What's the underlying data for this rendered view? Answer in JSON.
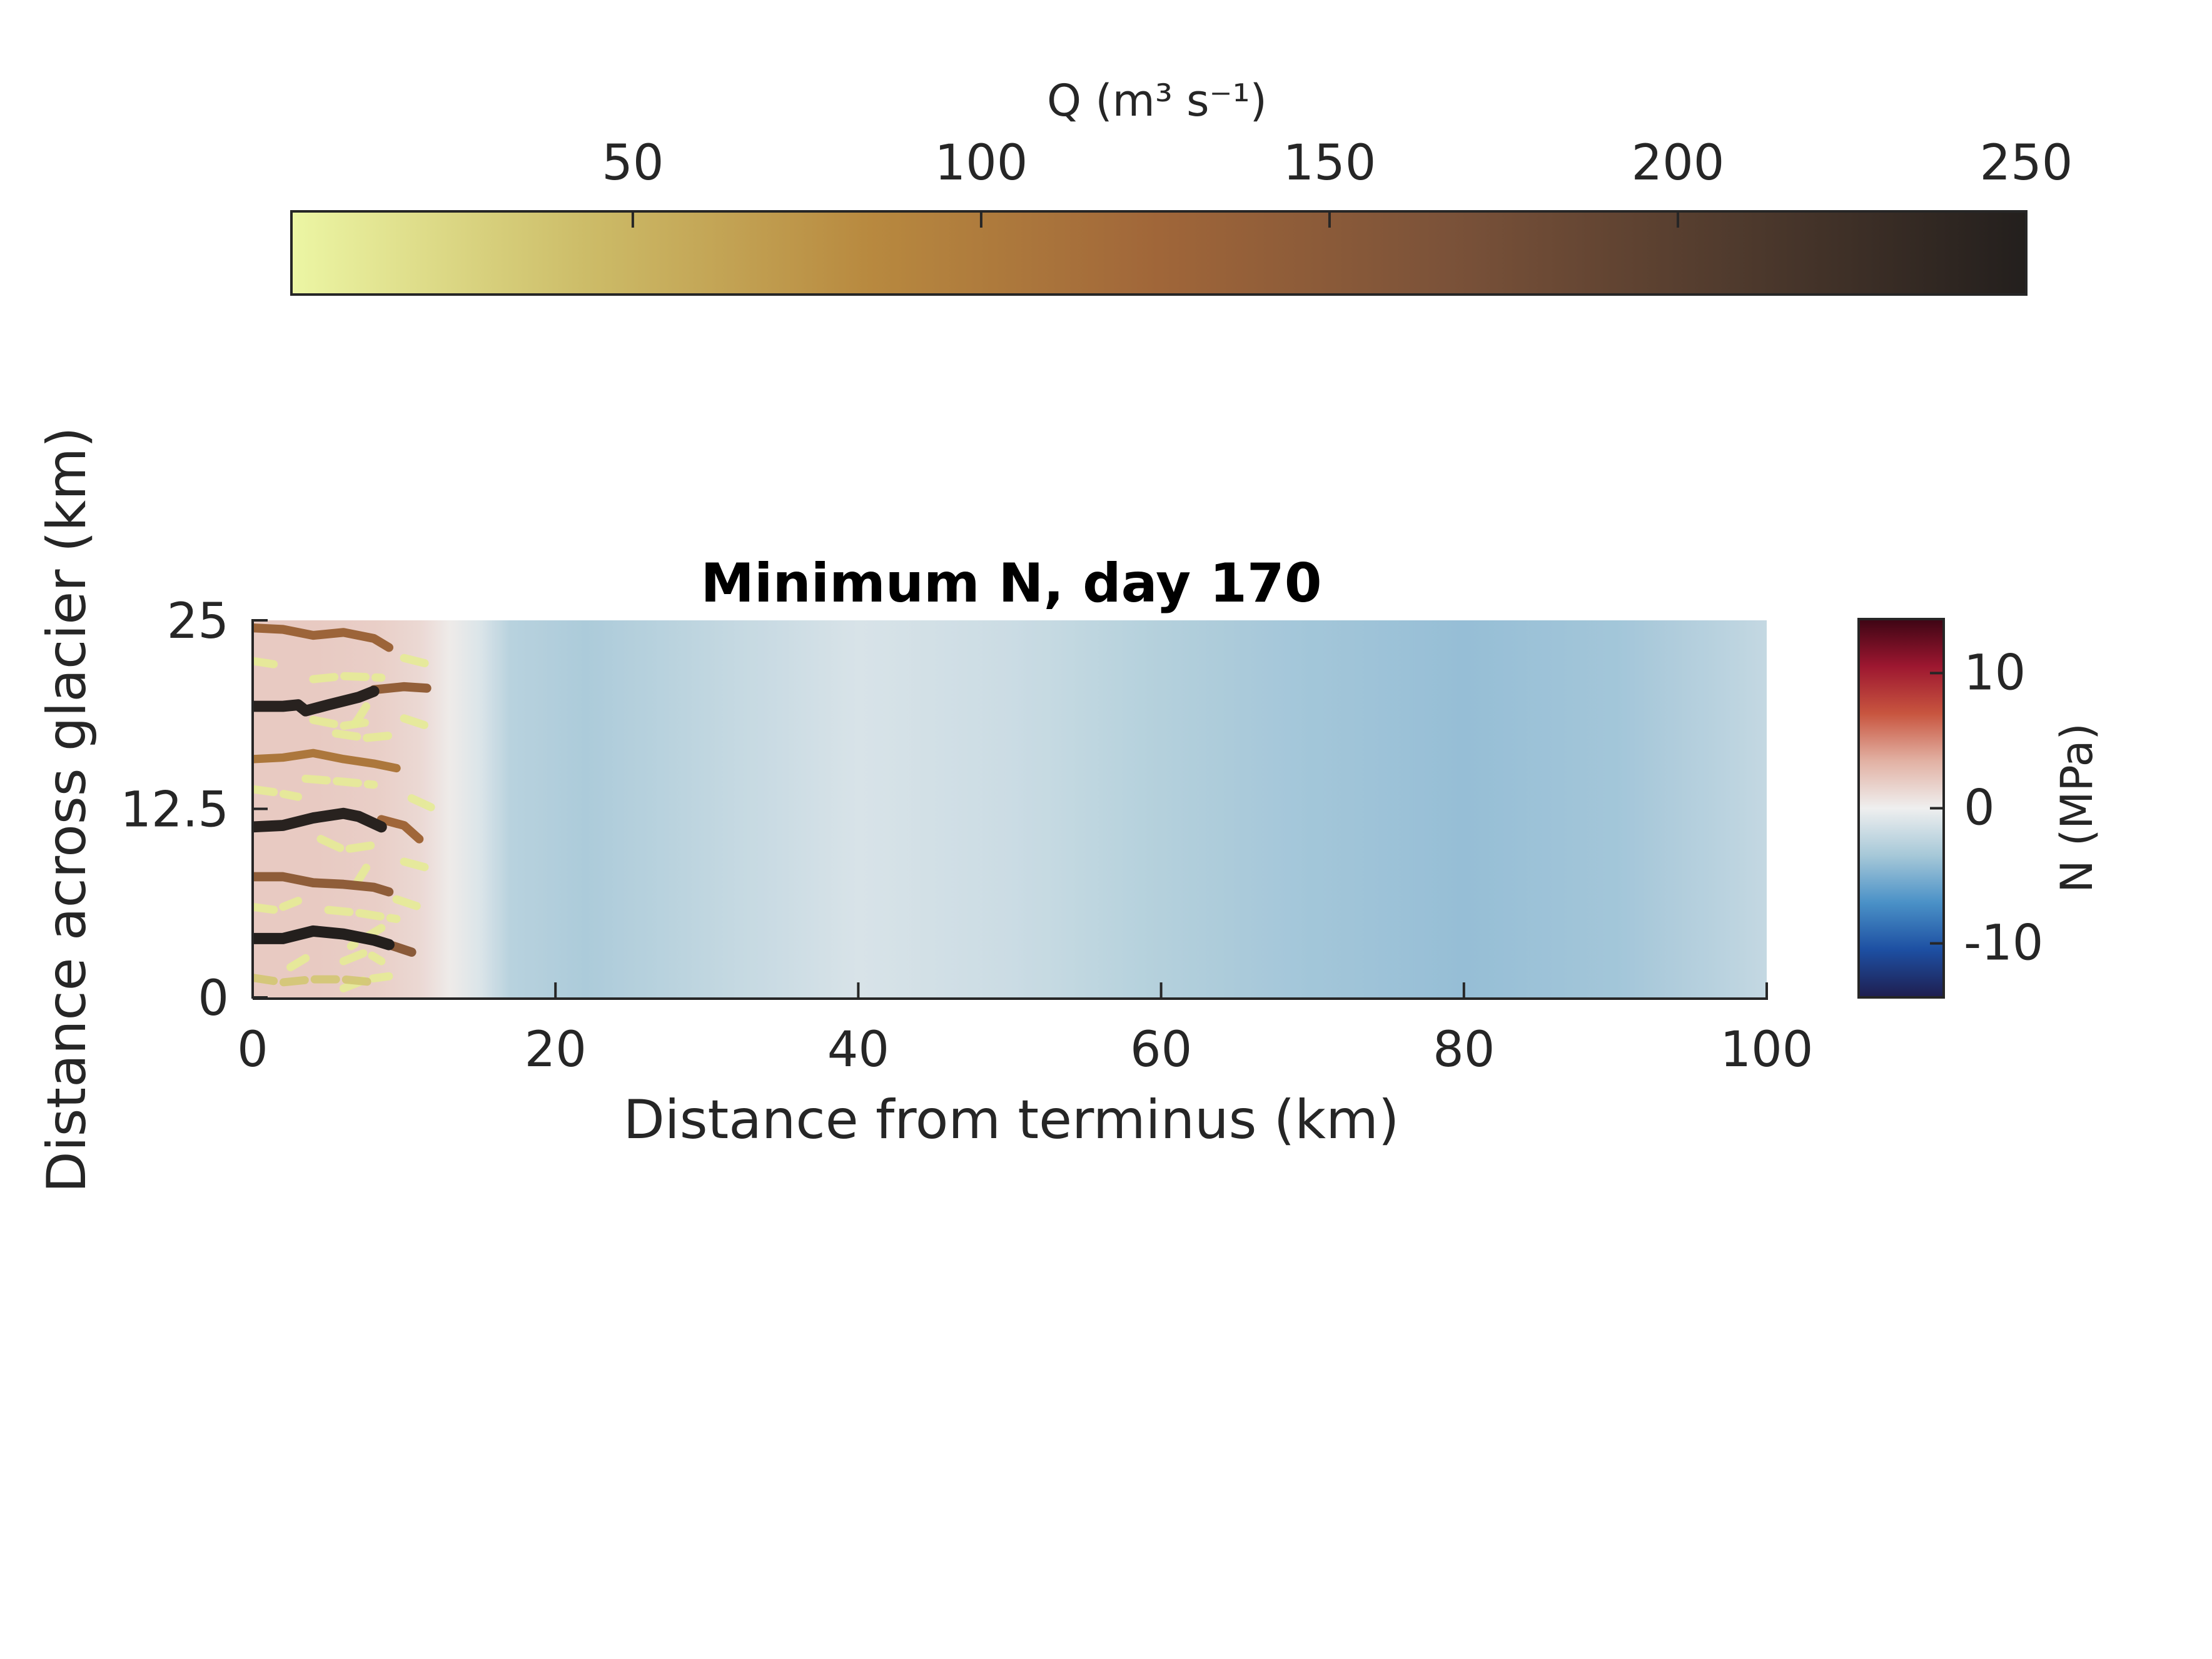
{
  "chart_data": {
    "type": "heatmap",
    "title": "Minimum N, day 170",
    "xlabel": "Distance from terminus (km)",
    "ylabel": "Distance across glacier (km)",
    "xlim": [
      0,
      100
    ],
    "ylim": [
      0,
      25
    ],
    "x_ticks": [
      "0",
      "20",
      "40",
      "60",
      "80",
      "100"
    ],
    "y_ticks": [
      "0",
      "12.5",
      "25"
    ],
    "colorbars": [
      {
        "name": "Q",
        "label": "Q (m³ s⁻¹)",
        "orientation": "horizontal",
        "placement": "top",
        "range": [
          1,
          250
        ],
        "ticks": [
          "50",
          "100",
          "150",
          "200",
          "250"
        ],
        "colors": [
          "#ecf6a4",
          "#cdbd69",
          "#b8893f",
          "#a06639",
          "#7b5239",
          "#4f3a2d",
          "#231f1d"
        ]
      },
      {
        "name": "N",
        "label": "N (MPa)",
        "orientation": "vertical",
        "placement": "right",
        "range": [
          -14,
          14
        ],
        "ticks": [
          "10",
          "0",
          "-10"
        ],
        "colors": [
          "#1f1e4f",
          "#1d4fa2",
          "#4a91c7",
          "#a6c8d8",
          "#efefef",
          "#e2b1a3",
          "#c8553f",
          "#9d1730",
          "#3d0514"
        ]
      }
    ],
    "n_field": {
      "x_km": [
        0,
        4,
        8,
        11,
        13,
        15,
        17,
        22,
        30,
        40,
        50,
        60,
        70,
        80,
        90,
        100
      ],
      "n_mpa": [
        2.2,
        2.2,
        2.0,
        1.4,
        0.3,
        -1.0,
        -2.8,
        -3.4,
        -2.4,
        -1.2,
        -1.8,
        -3.0,
        -3.8,
        -4.3,
        -3.8,
        -2.2
      ]
    },
    "channels": [
      {
        "points": [
          [
            0,
            24.5
          ],
          [
            2,
            24.4
          ],
          [
            4,
            24.0
          ],
          [
            6,
            24.2
          ],
          [
            8,
            23.8
          ],
          [
            9,
            23.2
          ]
        ],
        "q": 130
      },
      {
        "points": [
          [
            0,
            19.3
          ],
          [
            2,
            19.3
          ],
          [
            3,
            19.4
          ],
          [
            3.5,
            19.0
          ],
          [
            5,
            19.4
          ],
          [
            7,
            19.9
          ],
          [
            8,
            20.3
          ]
        ],
        "q": 245
      },
      {
        "points": [
          [
            8,
            20.4
          ],
          [
            10,
            20.6
          ],
          [
            11.5,
            20.5
          ]
        ],
        "q": 140
      },
      {
        "points": [
          [
            0,
            15.8
          ],
          [
            2,
            15.9
          ],
          [
            4,
            16.2
          ],
          [
            6,
            15.8
          ],
          [
            8,
            15.5
          ],
          [
            9.5,
            15.2
          ]
        ],
        "q": 105
      },
      {
        "points": [
          [
            0,
            11.3
          ],
          [
            2,
            11.4
          ],
          [
            4,
            11.9
          ],
          [
            6,
            12.2
          ],
          [
            7,
            12.0
          ],
          [
            8.5,
            11.3
          ]
        ],
        "q": 245
      },
      {
        "points": [
          [
            8.5,
            11.8
          ],
          [
            10,
            11.4
          ],
          [
            11,
            10.5
          ]
        ],
        "q": 125
      },
      {
        "points": [
          [
            0,
            8.0
          ],
          [
            2,
            8.0
          ],
          [
            4,
            7.6
          ],
          [
            6,
            7.5
          ],
          [
            8,
            7.3
          ],
          [
            9,
            7.0
          ]
        ],
        "q": 145
      },
      {
        "points": [
          [
            0,
            3.9
          ],
          [
            2,
            3.9
          ],
          [
            4,
            4.4
          ],
          [
            6,
            4.2
          ],
          [
            8,
            3.8
          ],
          [
            9,
            3.5
          ]
        ],
        "q": 250
      },
      {
        "points": [
          [
            9,
            3.5
          ],
          [
            10.5,
            3.0
          ]
        ],
        "q": 150
      },
      {
        "points": [
          [
            0,
            1.3
          ],
          [
            2,
            1.0
          ],
          [
            4,
            1.2
          ],
          [
            6,
            1.2
          ],
          [
            8,
            1.0
          ]
        ],
        "q": 35
      },
      {
        "points": [
          [
            0,
            22.3
          ],
          [
            2,
            22.0
          ]
        ],
        "q": 10
      },
      {
        "points": [
          [
            0,
            13.8
          ],
          [
            1.5,
            13.6
          ],
          [
            3,
            13.3
          ]
        ],
        "q": 10
      },
      {
        "points": [
          [
            0,
            6.0
          ],
          [
            1.5,
            5.8
          ],
          [
            3,
            6.4
          ]
        ],
        "q": 10
      },
      {
        "points": [
          [
            2.5,
            2.0
          ],
          [
            3.5,
            2.6
          ]
        ],
        "q": 10
      },
      {
        "points": [
          [
            4,
            21.1
          ],
          [
            6,
            21.3
          ],
          [
            8.5,
            21.2
          ]
        ],
        "q": 10
      },
      {
        "points": [
          [
            4,
            18.4
          ],
          [
            6,
            18.0
          ],
          [
            8,
            18.3
          ]
        ],
        "q": 10
      },
      {
        "points": [
          [
            5.5,
            17.5
          ],
          [
            7.5,
            17.2
          ],
          [
            9.5,
            17.4
          ]
        ],
        "q": 10
      },
      {
        "points": [
          [
            3.5,
            14.5
          ],
          [
            6,
            14.3
          ],
          [
            8,
            14.1
          ]
        ],
        "q": 10
      },
      {
        "points": [
          [
            4.5,
            10.5
          ],
          [
            6,
            9.8
          ],
          [
            8,
            10.1
          ]
        ],
        "q": 10
      },
      {
        "points": [
          [
            5,
            5.8
          ],
          [
            7,
            5.6
          ],
          [
            9.5,
            5.2
          ]
        ],
        "q": 10
      },
      {
        "points": [
          [
            6,
            2.4
          ],
          [
            7.5,
            3.0
          ],
          [
            8.5,
            2.4
          ]
        ],
        "q": 10
      },
      {
        "points": [
          [
            6,
            0.6
          ],
          [
            7.5,
            1.2
          ],
          [
            9,
            1.4
          ]
        ],
        "q": 10
      },
      {
        "points": [
          [
            10,
            22.5
          ],
          [
            12,
            22.0
          ]
        ],
        "q": 10
      },
      {
        "points": [
          [
            10,
            18.5
          ],
          [
            11.5,
            18.0
          ]
        ],
        "q": 10
      },
      {
        "points": [
          [
            10.5,
            13.2
          ],
          [
            11.8,
            12.6
          ]
        ],
        "q": 10
      },
      {
        "points": [
          [
            10,
            9.0
          ],
          [
            11.5,
            8.6
          ]
        ],
        "q": 10
      },
      {
        "points": [
          [
            9.5,
            6.5
          ],
          [
            11,
            6.0
          ]
        ],
        "q": 10
      },
      {
        "points": [
          [
            7.5,
            19.3
          ],
          [
            7,
            18.5
          ],
          [
            6.5,
            17.8
          ]
        ],
        "q": 10
      },
      {
        "points": [
          [
            7.5,
            8.6
          ],
          [
            7,
            7.8
          ],
          [
            6.5,
            7.0
          ]
        ],
        "q": 10
      },
      {
        "points": [
          [
            8.5,
            4.6
          ],
          [
            7.5,
            4.0
          ],
          [
            6.5,
            3.4
          ]
        ],
        "q": 10
      }
    ]
  }
}
